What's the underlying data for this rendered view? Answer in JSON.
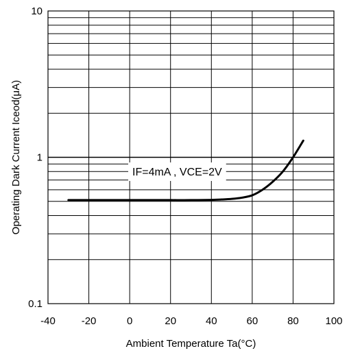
{
  "chart_data": {
    "type": "line",
    "title": "",
    "xlabel": "Ambient Temperature Ta(°C)",
    "ylabel": "Operating Dark Current Iceod(μA)",
    "xlim": [
      -40,
      100
    ],
    "ylim": [
      0.1,
      10
    ],
    "y_scale": "log",
    "x_ticks": [
      -40,
      -20,
      0,
      20,
      40,
      60,
      80,
      100
    ],
    "x_tick_labels": [
      "-40",
      "-20",
      "0",
      "20",
      "40",
      "60",
      "80",
      "100"
    ],
    "y_ticks": [
      0.1,
      1,
      10
    ],
    "y_tick_labels": [
      "0.1",
      "1",
      "10"
    ],
    "grid": true,
    "annotation": "IF=4mA , VCE=2V",
    "series": [
      {
        "x": [
          -30,
          -20,
          -10,
          0,
          10,
          20,
          30,
          40,
          45,
          50,
          55,
          60,
          65,
          70,
          75,
          80,
          85
        ],
        "y": [
          0.51,
          0.51,
          0.51,
          0.51,
          0.51,
          0.51,
          0.51,
          0.512,
          0.515,
          0.52,
          0.53,
          0.55,
          0.6,
          0.68,
          0.8,
          1.0,
          1.3
        ]
      }
    ]
  }
}
